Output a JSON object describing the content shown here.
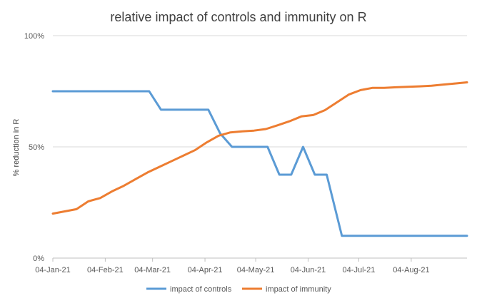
{
  "chart_data": {
    "type": "line",
    "title": "relative impact of controls and immunity on R",
    "xlabel": "",
    "ylabel": "% reduction in R",
    "ylim": [
      0,
      100
    ],
    "y_ticks": [
      "0%",
      "50%",
      "100%"
    ],
    "x_ticks": [
      "04-Jan-21",
      "04-Feb-21",
      "04-Mar-21",
      "04-Apr-21",
      "04-May-21",
      "04-Jun-21",
      "04-Jul-21",
      "04-Aug-21"
    ],
    "x_tick_days": [
      0,
      31,
      59,
      90,
      120,
      151,
      181,
      212
    ],
    "x_range_days": [
      0,
      245
    ],
    "grid": "horizontal",
    "legend_position": "bottom",
    "series": [
      {
        "name": "impact of controls",
        "color": "#5b9bd5",
        "x_days": [
          0,
          57,
          64,
          92,
          99,
          106,
          127,
          134,
          141,
          148,
          155,
          162,
          171,
          245
        ],
        "values": [
          75,
          75,
          66.7,
          66.7,
          56,
          50,
          50,
          37.5,
          37.5,
          50,
          37.5,
          37.5,
          10,
          10
        ]
      },
      {
        "name": "impact of immunity",
        "color": "#ed7d31",
        "x_days": [
          0,
          7,
          14,
          21,
          28,
          35,
          42,
          49,
          56,
          63,
          70,
          77,
          84,
          91,
          98,
          105,
          112,
          119,
          126,
          133,
          140,
          147,
          154,
          161,
          168,
          175,
          182,
          189,
          196,
          203,
          210,
          217,
          224,
          231,
          238,
          245
        ],
        "values": [
          20,
          21,
          22,
          25.5,
          27,
          30,
          32.5,
          35.5,
          38.5,
          41,
          43.5,
          46,
          48.5,
          52,
          55,
          56.5,
          57,
          57.3,
          58,
          59.7,
          61.5,
          63.7,
          64.3,
          66.5,
          70,
          73.5,
          75.5,
          76.5,
          76.5,
          76.8,
          77,
          77.2,
          77.5,
          78,
          78.5,
          79
        ]
      }
    ]
  }
}
